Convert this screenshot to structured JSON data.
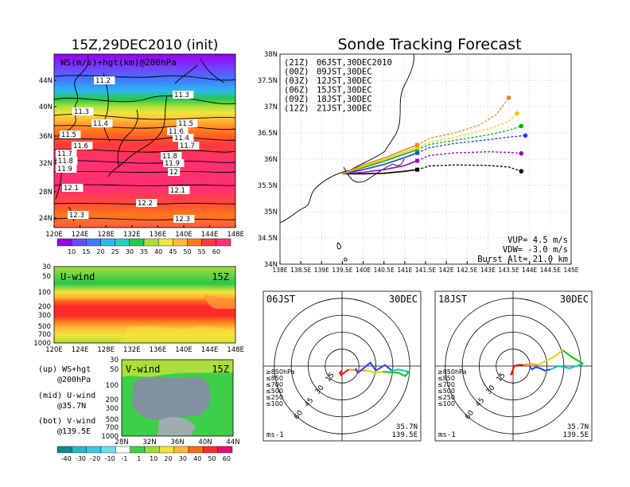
{
  "titles": {
    "left": "15Z,29DEC2010 (init)",
    "right": "Sonde Tracking Forecast"
  },
  "ws_map": {
    "label": "WS(m/s)+hgt(km)@200hPa",
    "lat_ticks": [
      "44N",
      "40N",
      "36N",
      "32N",
      "28N",
      "24N"
    ],
    "lon_ticks": [
      "120E",
      "124E",
      "128E",
      "132E",
      "136E",
      "140E",
      "144E",
      "148E"
    ],
    "hgt_labels": [
      "11.2",
      "11.3",
      "11.3",
      "11.4",
      "11.4",
      "11.5",
      "11.5",
      "11.6",
      "11.6",
      "11.7",
      "11.7",
      "11.8",
      "11.8",
      "11.9",
      "11.9",
      "12",
      "12.1",
      "12.1",
      "12.2",
      "12.3",
      "12.3"
    ],
    "colorbar": [
      "10",
      "15",
      "20",
      "25",
      "30",
      "35",
      "40",
      "45",
      "50",
      "55",
      "60"
    ],
    "colors": [
      "#9a00f0",
      "#6a4bff",
      "#3f7bff",
      "#2fb6f0",
      "#25d0c0",
      "#27c84a",
      "#a8df3a",
      "#f2e43a",
      "#ffb83a",
      "#ff7a1a",
      "#ff3a3a",
      "#ff3070"
    ]
  },
  "u_panel": {
    "label": "U-wind",
    "time": "15Z",
    "p_ticks": [
      "30",
      "50",
      "100",
      "200",
      "300",
      "500",
      "700",
      "1000"
    ],
    "lon_ticks": [
      "120E",
      "124E",
      "128E",
      "132E",
      "136E",
      "140E",
      "144E",
      "148E"
    ]
  },
  "v_panel": {
    "label": "V-wind",
    "time": "15Z",
    "p_ticks": [
      "30",
      "50",
      "100",
      "200",
      "300",
      "500",
      "700",
      "1000"
    ],
    "lat_ticks": [
      "28N",
      "32N",
      "36N",
      "40N",
      "44N"
    ],
    "colorbar": [
      "-40",
      "-30",
      "-20",
      "-10",
      "-1",
      "1",
      "10",
      "20",
      "30",
      "40",
      "50",
      "60"
    ]
  },
  "legend_notes": [
    {
      "line1": "(up) WS+hgt",
      "line2": "@200hPa"
    },
    {
      "line1": "(mid) U-wind",
      "line2": "@35.7N"
    },
    {
      "line1": "(bot) V-wind",
      "line2": "@139.5E"
    }
  ],
  "track_map": {
    "lat_ticks": [
      "38N",
      "37.5N",
      "37N",
      "36.5N",
      "36N",
      "35.5N",
      "35N",
      "34.5N",
      "34N"
    ],
    "lon_ticks": [
      "138E",
      "138.5E",
      "139E",
      "139.5E",
      "140E",
      "140.5E",
      "141E",
      "141.5E",
      "142E",
      "142.5E",
      "143E",
      "143.5E",
      "144E",
      "144.5E",
      "145E"
    ],
    "legend": [
      {
        "code": "(21Z)",
        "label": "06JST,30DEC2010",
        "color": "#000000"
      },
      {
        "code": "(00Z)",
        "label": "09JST,30DEC",
        "color": "#a000c8"
      },
      {
        "code": "(03Z)",
        "label": "12JST,30DEC",
        "color": "#1e3cff"
      },
      {
        "code": "(06Z)",
        "label": "15JST,30DEC",
        "color": "#00b400"
      },
      {
        "code": "(09Z)",
        "label": "18JST,30DEC",
        "color": "#e6d200"
      },
      {
        "code": "(12Z)",
        "label": "21JST,30DEC",
        "color": "#f08228"
      }
    ],
    "stats": {
      "vup": "VUP= 4.5 m/s",
      "vdw": "VDW= -3.0 m/s",
      "burst": "Burst Alt= 21.0 km"
    }
  },
  "chart_data": {
    "type": "line",
    "title": "Sonde Tracking Forecast",
    "xlim": [
      138,
      145
    ],
    "ylim": [
      34,
      38
    ],
    "origin": {
      "lon": 139.5,
      "lat": 35.72
    },
    "series": [
      {
        "name": "06JST,30DEC2010",
        "color": "#000000",
        "ascent": [
          [
            139.5,
            35.72
          ],
          [
            140.0,
            35.72
          ],
          [
            140.5,
            35.73
          ],
          [
            141.0,
            35.77
          ],
          [
            141.3,
            35.8
          ]
        ],
        "descent": [
          [
            141.3,
            35.8
          ],
          [
            141.6,
            35.87
          ],
          [
            142.2,
            35.89
          ],
          [
            143.0,
            35.88
          ],
          [
            143.5,
            35.85
          ],
          [
            143.8,
            35.77
          ]
        ]
      },
      {
        "name": "09JST,30DEC",
        "color": "#a000c8",
        "ascent": [
          [
            139.5,
            35.72
          ],
          [
            140.0,
            35.75
          ],
          [
            140.5,
            35.8
          ],
          [
            141.0,
            35.88
          ],
          [
            141.3,
            35.97
          ]
        ],
        "descent": [
          [
            141.3,
            35.97
          ],
          [
            141.6,
            36.07
          ],
          [
            142.2,
            36.12
          ],
          [
            143.0,
            36.14
          ],
          [
            143.5,
            36.13
          ],
          [
            143.8,
            36.11
          ]
        ]
      },
      {
        "name": "12JST,30DEC",
        "color": "#1e3cff",
        "ascent": [
          [
            139.5,
            35.72
          ],
          [
            140.0,
            35.8
          ],
          [
            140.5,
            35.9
          ],
          [
            141.0,
            36.03
          ],
          [
            141.3,
            36.12
          ]
        ],
        "descent": [
          [
            141.3,
            36.12
          ],
          [
            141.6,
            36.22
          ],
          [
            142.2,
            36.3
          ],
          [
            143.0,
            36.37
          ],
          [
            143.5,
            36.42
          ],
          [
            143.9,
            36.45
          ]
        ]
      },
      {
        "name": "15JST,30DEC",
        "color": "#00b400",
        "ascent": [
          [
            139.5,
            35.72
          ],
          [
            140.0,
            35.84
          ],
          [
            140.5,
            35.96
          ],
          [
            141.0,
            36.1
          ],
          [
            141.3,
            36.18
          ]
        ],
        "descent": [
          [
            141.3,
            36.18
          ],
          [
            141.6,
            36.28
          ],
          [
            142.2,
            36.36
          ],
          [
            143.0,
            36.46
          ],
          [
            143.5,
            36.55
          ],
          [
            143.8,
            36.63
          ]
        ]
      },
      {
        "name": "18JST,30DEC",
        "color": "#e6d200",
        "ascent": [
          [
            139.5,
            35.72
          ],
          [
            140.0,
            35.86
          ],
          [
            140.5,
            35.99
          ],
          [
            141.0,
            36.14
          ],
          [
            141.3,
            36.22
          ]
        ],
        "descent": [
          [
            141.3,
            36.22
          ],
          [
            141.6,
            36.32
          ],
          [
            142.2,
            36.42
          ],
          [
            143.0,
            36.57
          ],
          [
            143.5,
            36.72
          ],
          [
            143.7,
            36.87
          ]
        ]
      },
      {
        "name": "21JST,30DEC",
        "color": "#f08228",
        "ascent": [
          [
            139.5,
            35.72
          ],
          [
            140.0,
            35.89
          ],
          [
            140.5,
            36.02
          ],
          [
            141.0,
            36.18
          ],
          [
            141.3,
            36.27
          ]
        ],
        "descent": [
          [
            141.3,
            36.27
          ],
          [
            141.6,
            36.4
          ],
          [
            142.2,
            36.5
          ],
          [
            142.8,
            36.65
          ],
          [
            143.2,
            36.85
          ],
          [
            143.5,
            37.17
          ]
        ]
      }
    ]
  },
  "hodographs": [
    {
      "time": "06JST",
      "date": "30DEC",
      "loc_lat": "35.7N",
      "loc_lon": "139.5E",
      "unit": "ms-1",
      "ring_labels": [
        "15",
        "30",
        "45",
        "60"
      ],
      "levels": [
        {
          "label": "≥850hPa",
          "color": "#ff0000"
        },
        {
          "label": "≤850",
          "color": "#ff9900"
        },
        {
          "label": "≤700",
          "color": "#dddd00"
        },
        {
          "label": "≤500",
          "color": "#00cc00"
        },
        {
          "label": "≤250",
          "color": "#00cccc"
        },
        {
          "label": "≤100",
          "color": "#2244ff"
        }
      ],
      "segments": [
        {
          "color": "#ff0000",
          "uv": [
            [
              0,
              -4
            ],
            [
              -2,
              -6
            ],
            [
              -1,
              -8
            ],
            [
              3,
              -5
            ],
            [
              6,
              -3
            ]
          ]
        },
        {
          "color": "#ff9900",
          "uv": [
            [
              6,
              -3
            ],
            [
              15,
              -4
            ],
            [
              22,
              -4
            ]
          ]
        },
        {
          "color": "#dddd00",
          "uv": [
            [
              22,
              -4
            ],
            [
              30,
              -6
            ],
            [
              36,
              -5
            ]
          ]
        },
        {
          "color": "#00cc00",
          "uv": [
            [
              36,
              -5
            ],
            [
              50,
              -6
            ],
            [
              56,
              -9
            ],
            [
              59,
              -5
            ]
          ]
        },
        {
          "color": "#00cccc",
          "uv": [
            [
              59,
              -5
            ],
            [
              50,
              -3
            ],
            [
              44,
              -4
            ]
          ]
        },
        {
          "color": "#2244ff",
          "uv": [
            [
              44,
              -4
            ],
            [
              38,
              1
            ],
            [
              30,
              -4
            ],
            [
              25,
              3
            ],
            [
              19,
              -2
            ],
            [
              14,
              -6
            ],
            [
              12,
              -2
            ]
          ]
        }
      ]
    },
    {
      "time": "18JST",
      "date": "30DEC",
      "loc_lat": "35.7N",
      "loc_lon": "139.5E",
      "unit": "ms-1",
      "ring_labels": [
        "15",
        "30",
        "45",
        "60"
      ],
      "levels": [
        {
          "label": "≥850hPa",
          "color": "#ff0000"
        },
        {
          "label": "≤850",
          "color": "#ff9900"
        },
        {
          "label": "≤700",
          "color": "#dddd00"
        },
        {
          "label": "≤500",
          "color": "#00cc00"
        },
        {
          "label": "≤250",
          "color": "#00cccc"
        },
        {
          "label": "≤100",
          "color": "#2244ff"
        }
      ],
      "segments": [
        {
          "color": "#ff0000",
          "uv": [
            [
              0,
              -5
            ],
            [
              -2,
              -8
            ],
            [
              1,
              0
            ],
            [
              5,
              1
            ],
            [
              9,
              1
            ]
          ]
        },
        {
          "color": "#ff9900",
          "uv": [
            [
              9,
              1
            ],
            [
              16,
              2
            ],
            [
              22,
              1
            ]
          ]
        },
        {
          "color": "#dddd00",
          "uv": [
            [
              22,
              1
            ],
            [
              30,
              5
            ],
            [
              36,
              8
            ],
            [
              44,
              14
            ]
          ]
        },
        {
          "color": "#00cc00",
          "uv": [
            [
              44,
              14
            ],
            [
              52,
              8
            ],
            [
              62,
              2
            ]
          ]
        },
        {
          "color": "#00cccc",
          "uv": [
            [
              62,
              2
            ],
            [
              50,
              -2
            ],
            [
              40,
              0
            ],
            [
              33,
              -3
            ]
          ]
        },
        {
          "color": "#2244ff",
          "uv": [
            [
              33,
              -3
            ],
            [
              28,
              -4
            ],
            [
              24,
              -2
            ],
            [
              20,
              -1
            ],
            [
              17,
              -3
            ],
            [
              15,
              -1
            ]
          ]
        }
      ]
    }
  ]
}
